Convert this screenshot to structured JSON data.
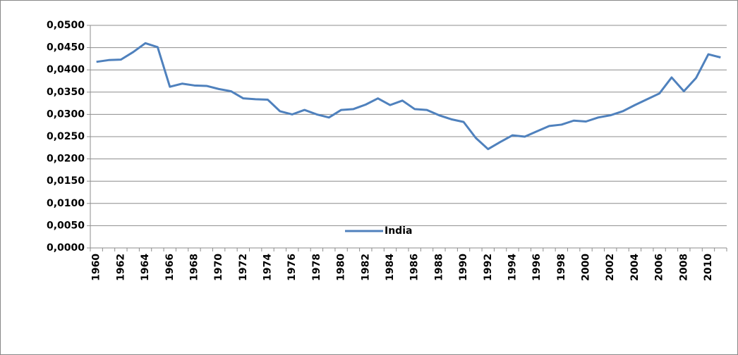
{
  "chart_data": {
    "type": "line",
    "categories": [
      "1960",
      null,
      "1962",
      null,
      "1964",
      null,
      "1966",
      null,
      "1968",
      null,
      "1970",
      null,
      "1972",
      null,
      "1974",
      null,
      "1976",
      null,
      "1978",
      null,
      "1980",
      null,
      "1982",
      null,
      "1984",
      null,
      "1986",
      null,
      "1988",
      null,
      "1990",
      null,
      "1992",
      null,
      "1994",
      null,
      "1996",
      null,
      "1998",
      null,
      "2000",
      null,
      "2002",
      null,
      "2004",
      null,
      "2006",
      null,
      "2008",
      null,
      "2010",
      null
    ],
    "series": [
      {
        "name": "India",
        "color": "#4f81bd",
        "values": [
          0.0418,
          0.0422,
          0.0423,
          0.044,
          0.046,
          0.0451,
          0.0362,
          0.0369,
          0.0365,
          0.0364,
          0.0357,
          0.0352,
          0.0336,
          0.0334,
          0.0333,
          0.0307,
          0.03,
          0.031,
          0.03,
          0.0293,
          0.031,
          0.0312,
          0.0322,
          0.0336,
          0.0321,
          0.0331,
          0.0312,
          0.031,
          0.0298,
          0.0289,
          0.0283,
          0.0247,
          0.0222,
          0.0238,
          0.0253,
          0.025,
          0.0262,
          0.0274,
          0.0277,
          0.0286,
          0.0284,
          0.0293,
          0.0298,
          0.0307,
          0.0321,
          0.0334,
          0.0347,
          0.0383,
          0.0352,
          0.0382,
          0.0435,
          0.0428
        ]
      }
    ],
    "ylim": [
      0,
      0.05
    ],
    "yticks": [
      {
        "value": 0,
        "label": "0,0000"
      },
      {
        "value": 0.005,
        "label": "0,0050"
      },
      {
        "value": 0.01,
        "label": "0,0100"
      },
      {
        "value": 0.015,
        "label": "0,0150"
      },
      {
        "value": 0.02,
        "label": "0,0200"
      },
      {
        "value": 0.025,
        "label": "0,0250"
      },
      {
        "value": 0.03,
        "label": "0,0300"
      },
      {
        "value": 0.035,
        "label": "0,0350"
      },
      {
        "value": 0.04,
        "label": "0,0400"
      },
      {
        "value": 0.045,
        "label": "0,0450"
      },
      {
        "value": 0.05,
        "label": "0,0500"
      }
    ],
    "grid": true,
    "legend": "bottom"
  }
}
